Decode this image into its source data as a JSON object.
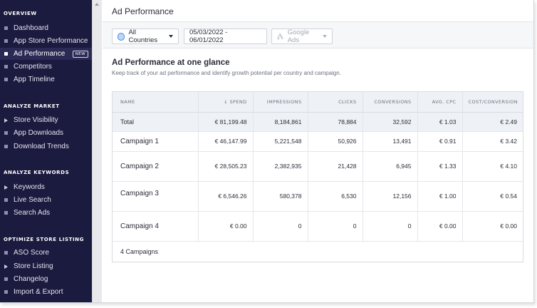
{
  "sidebar": {
    "sections": [
      {
        "title": "OVERVIEW",
        "items": [
          {
            "label": "Dashboard",
            "marker": "bullet"
          },
          {
            "label": "App Store Performance",
            "marker": "bullet"
          },
          {
            "label": "Ad Performance",
            "marker": "bullet",
            "active": true,
            "badge": "NEW"
          },
          {
            "label": "Competitors",
            "marker": "bullet"
          },
          {
            "label": "App Timeline",
            "marker": "bullet"
          }
        ]
      },
      {
        "title": "ANALYZE MARKET",
        "items": [
          {
            "label": "Store Visibility",
            "marker": "arrow"
          },
          {
            "label": "App Downloads",
            "marker": "bullet"
          },
          {
            "label": "Download Trends",
            "marker": "bullet"
          }
        ]
      },
      {
        "title": "ANALYZE KEYWORDS",
        "items": [
          {
            "label": "Keywords",
            "marker": "arrow"
          },
          {
            "label": "Live Search",
            "marker": "bullet"
          },
          {
            "label": "Search Ads",
            "marker": "bullet"
          }
        ]
      },
      {
        "title": "OPTIMIZE STORE LISTING",
        "items": [
          {
            "label": "ASO Score",
            "marker": "bullet"
          },
          {
            "label": "Store Listing",
            "marker": "arrow"
          },
          {
            "label": "Changelog",
            "marker": "bullet"
          },
          {
            "label": "Import & Export",
            "marker": "bullet"
          }
        ]
      }
    ]
  },
  "header": {
    "title": "Ad Performance"
  },
  "filters": {
    "country": "All Countries",
    "date_range": "05/03/2022 - 06/01/2022",
    "source": "Google Ads"
  },
  "overview": {
    "title": "Ad Performance at one glance",
    "subtitle": "Keep track of your ad performance and identify growth potential per country and campaign."
  },
  "table": {
    "columns": [
      "NAME",
      "↓ SPEND",
      "IMPRESSIONS",
      "CLICKS",
      "CONVERSIONS",
      "AVG. CPC",
      "COST/CONVERSION"
    ],
    "total": [
      "Total",
      "€ 81,199.48",
      "8,184,861",
      "78,884",
      "32,592",
      "€ 1.03",
      "€ 2.49"
    ],
    "rows": [
      [
        "Campaign 1",
        "€ 46,147.99",
        "5,221,548",
        "50,926",
        "13,491",
        "€ 0.91",
        "€ 3.42"
      ],
      [
        "Campaign 2",
        "€ 28,505.23",
        "2,382,935",
        "21,428",
        "6,945",
        "€ 1.33",
        "€ 4.10"
      ],
      [
        "Campaign 3",
        "€ 6,546.26",
        "580,378",
        "6,530",
        "12,156",
        "€ 1.00",
        "€ 0.54"
      ],
      [
        "Campaign 4",
        "€ 0.00",
        "0",
        "0",
        "0",
        "€ 0.00",
        "€ 0.00"
      ]
    ],
    "footer": "4 Campaigns"
  },
  "colors": {
    "sidebar_bg": "#1b1a3f",
    "accent_blue": "#4a90e2",
    "header_row_bg": "#eef1f6"
  }
}
